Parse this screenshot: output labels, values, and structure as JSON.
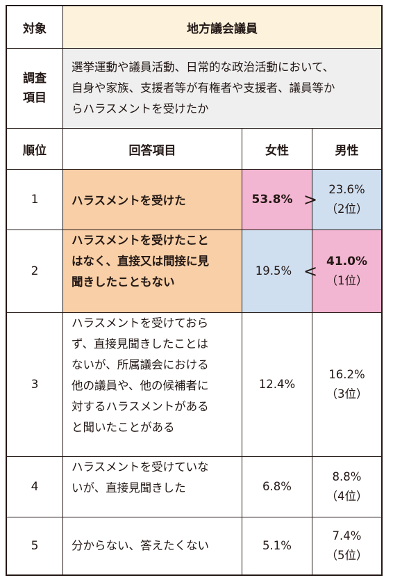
{
  "header": {
    "target_label": "対象",
    "target_value": "地方議会議員",
    "survey_label_line1": "調査",
    "survey_label_line2": "項目",
    "survey_text_line1": "選挙運動や議員活動、日常的な政治活動において、",
    "survey_text_line2": "自身や家族、支援者等が有権者や支援者、議員等か",
    "survey_text_line3": "らハラスメントを受けたか"
  },
  "columns": {
    "rank": "順位",
    "answer": "回答項目",
    "female": "女性",
    "male": "男性"
  },
  "rows": [
    {
      "rank": "1",
      "answer_lines": [
        "ハラスメントを受けた"
      ],
      "female": "53.8%",
      "male": "23.6%",
      "male_rank": "（2位）",
      "comparison": ">"
    },
    {
      "rank": "2",
      "answer_lines": [
        "ハラスメントを受けたこと",
        "はなく、直接又は間接に見",
        "聞きしたこともない"
      ],
      "female": "19.5%",
      "male": "41.0%",
      "male_rank": "（1位）",
      "comparison": "<"
    },
    {
      "rank": "3",
      "answer_lines": [
        "ハラスメントを受けておら",
        "ず、直接見聞きしたことは",
        "ないが、所属議会における",
        "他の議員や、他の候補者に",
        "対するハラスメントがある",
        "と聞いたことがある"
      ],
      "female": "12.4%",
      "male": "16.2%",
      "male_rank": "（3位）"
    },
    {
      "rank": "4",
      "answer_lines": [
        "ハラスメントを受けていな",
        "いが、直接見聞きした"
      ],
      "female": "6.8%",
      "male": "8.8%",
      "male_rank": "（4位）"
    },
    {
      "rank": "5",
      "answer_lines": [
        "分からない、答えたくない"
      ],
      "female": "5.1%",
      "male": "7.4%",
      "male_rank": "（5位）"
    }
  ],
  "colors": {
    "header_fill": "#fdf2dc",
    "survey_fill": "#efefef",
    "highlight_orange": "#f8cfa6",
    "highlight_pink": "#f3b6d2",
    "highlight_blue": "#cfdff0",
    "border": "#231815"
  }
}
